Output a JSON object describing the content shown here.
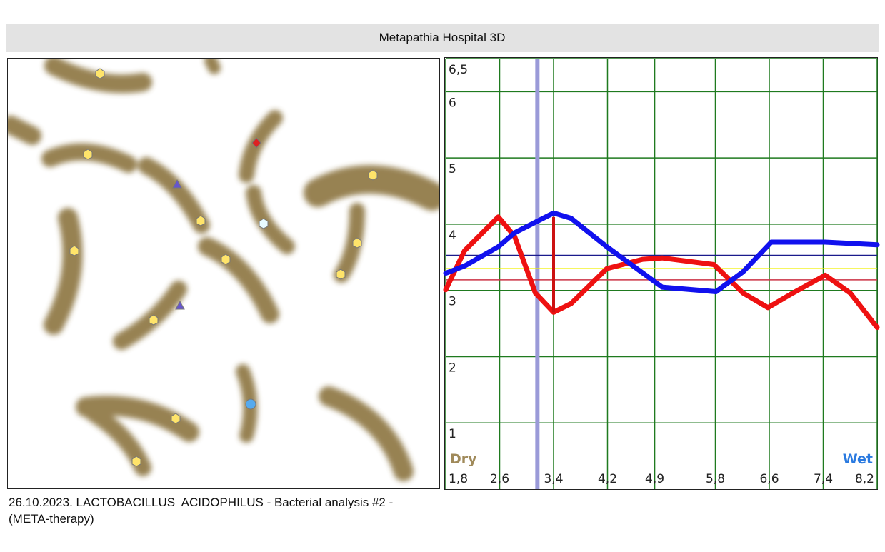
{
  "header": {
    "title": "Metapathia Hospital 3D"
  },
  "chart_data": {
    "type": "line",
    "xlim": [
      1.8,
      8.2
    ],
    "xticks": [
      {
        "value": 1.8,
        "label": "1,8"
      },
      {
        "value": 2.6,
        "label": "2,6"
      },
      {
        "value": 3.4,
        "label": "3,4"
      },
      {
        "value": 4.2,
        "label": "4,2"
      },
      {
        "value": 4.9,
        "label": "4,9"
      },
      {
        "value": 5.8,
        "label": "5,8"
      },
      {
        "value": 6.6,
        "label": "6,6"
      },
      {
        "value": 7.4,
        "label": "7,4"
      },
      {
        "value": 8.2,
        "label": "8,2"
      }
    ],
    "ylim": [
      0,
      6.5
    ],
    "yticks": [
      {
        "value": 6.5,
        "label": "6,5"
      },
      6,
      5,
      4,
      3,
      2,
      1
    ],
    "grid": true,
    "x_left_label": "Dry",
    "x_right_label": "Wet",
    "series": [
      {
        "color": "#ee1111",
        "x": [
          1.8,
          2.08,
          2.58,
          2.82,
          3.13,
          3.4,
          3.66,
          4.19,
          4.72,
          5.01,
          5.78,
          6.21,
          6.58,
          6.95,
          7.43,
          7.8,
          8.2
        ],
        "values": [
          3.01,
          3.6,
          4.11,
          3.82,
          2.96,
          2.67,
          2.8,
          3.33,
          3.47,
          3.49,
          3.39,
          2.96,
          2.74,
          2.96,
          3.23,
          2.96,
          2.44
        ]
      },
      {
        "color": "#1111ee",
        "x": [
          1.8,
          2.08,
          2.58,
          2.82,
          3.4,
          3.66,
          4.19,
          5.01,
          5.81,
          6.21,
          6.63,
          7.43,
          8.2
        ],
        "values": [
          3.26,
          3.37,
          3.66,
          3.87,
          4.17,
          4.09,
          3.66,
          3.05,
          2.98,
          3.28,
          3.73,
          3.73,
          3.69
        ]
      }
    ],
    "hlines": [
      {
        "value": 3.53,
        "color": "#1a1a8c"
      },
      {
        "value": 3.33,
        "color": "#f0f000"
      },
      {
        "value": 3.16,
        "color": "#cc3344"
      }
    ],
    "vlines": [
      {
        "value": 3.16,
        "color": "#9a9ad8"
      }
    ],
    "segments": [
      {
        "x": 3.4,
        "y": [
          4.11,
          2.67
        ],
        "color": "#cc1111"
      }
    ]
  },
  "caption": "26.10.2023. LACTOBACILLUS  ACIDOPHILUS - Bacterial analysis #2 - (META-therapy)"
}
